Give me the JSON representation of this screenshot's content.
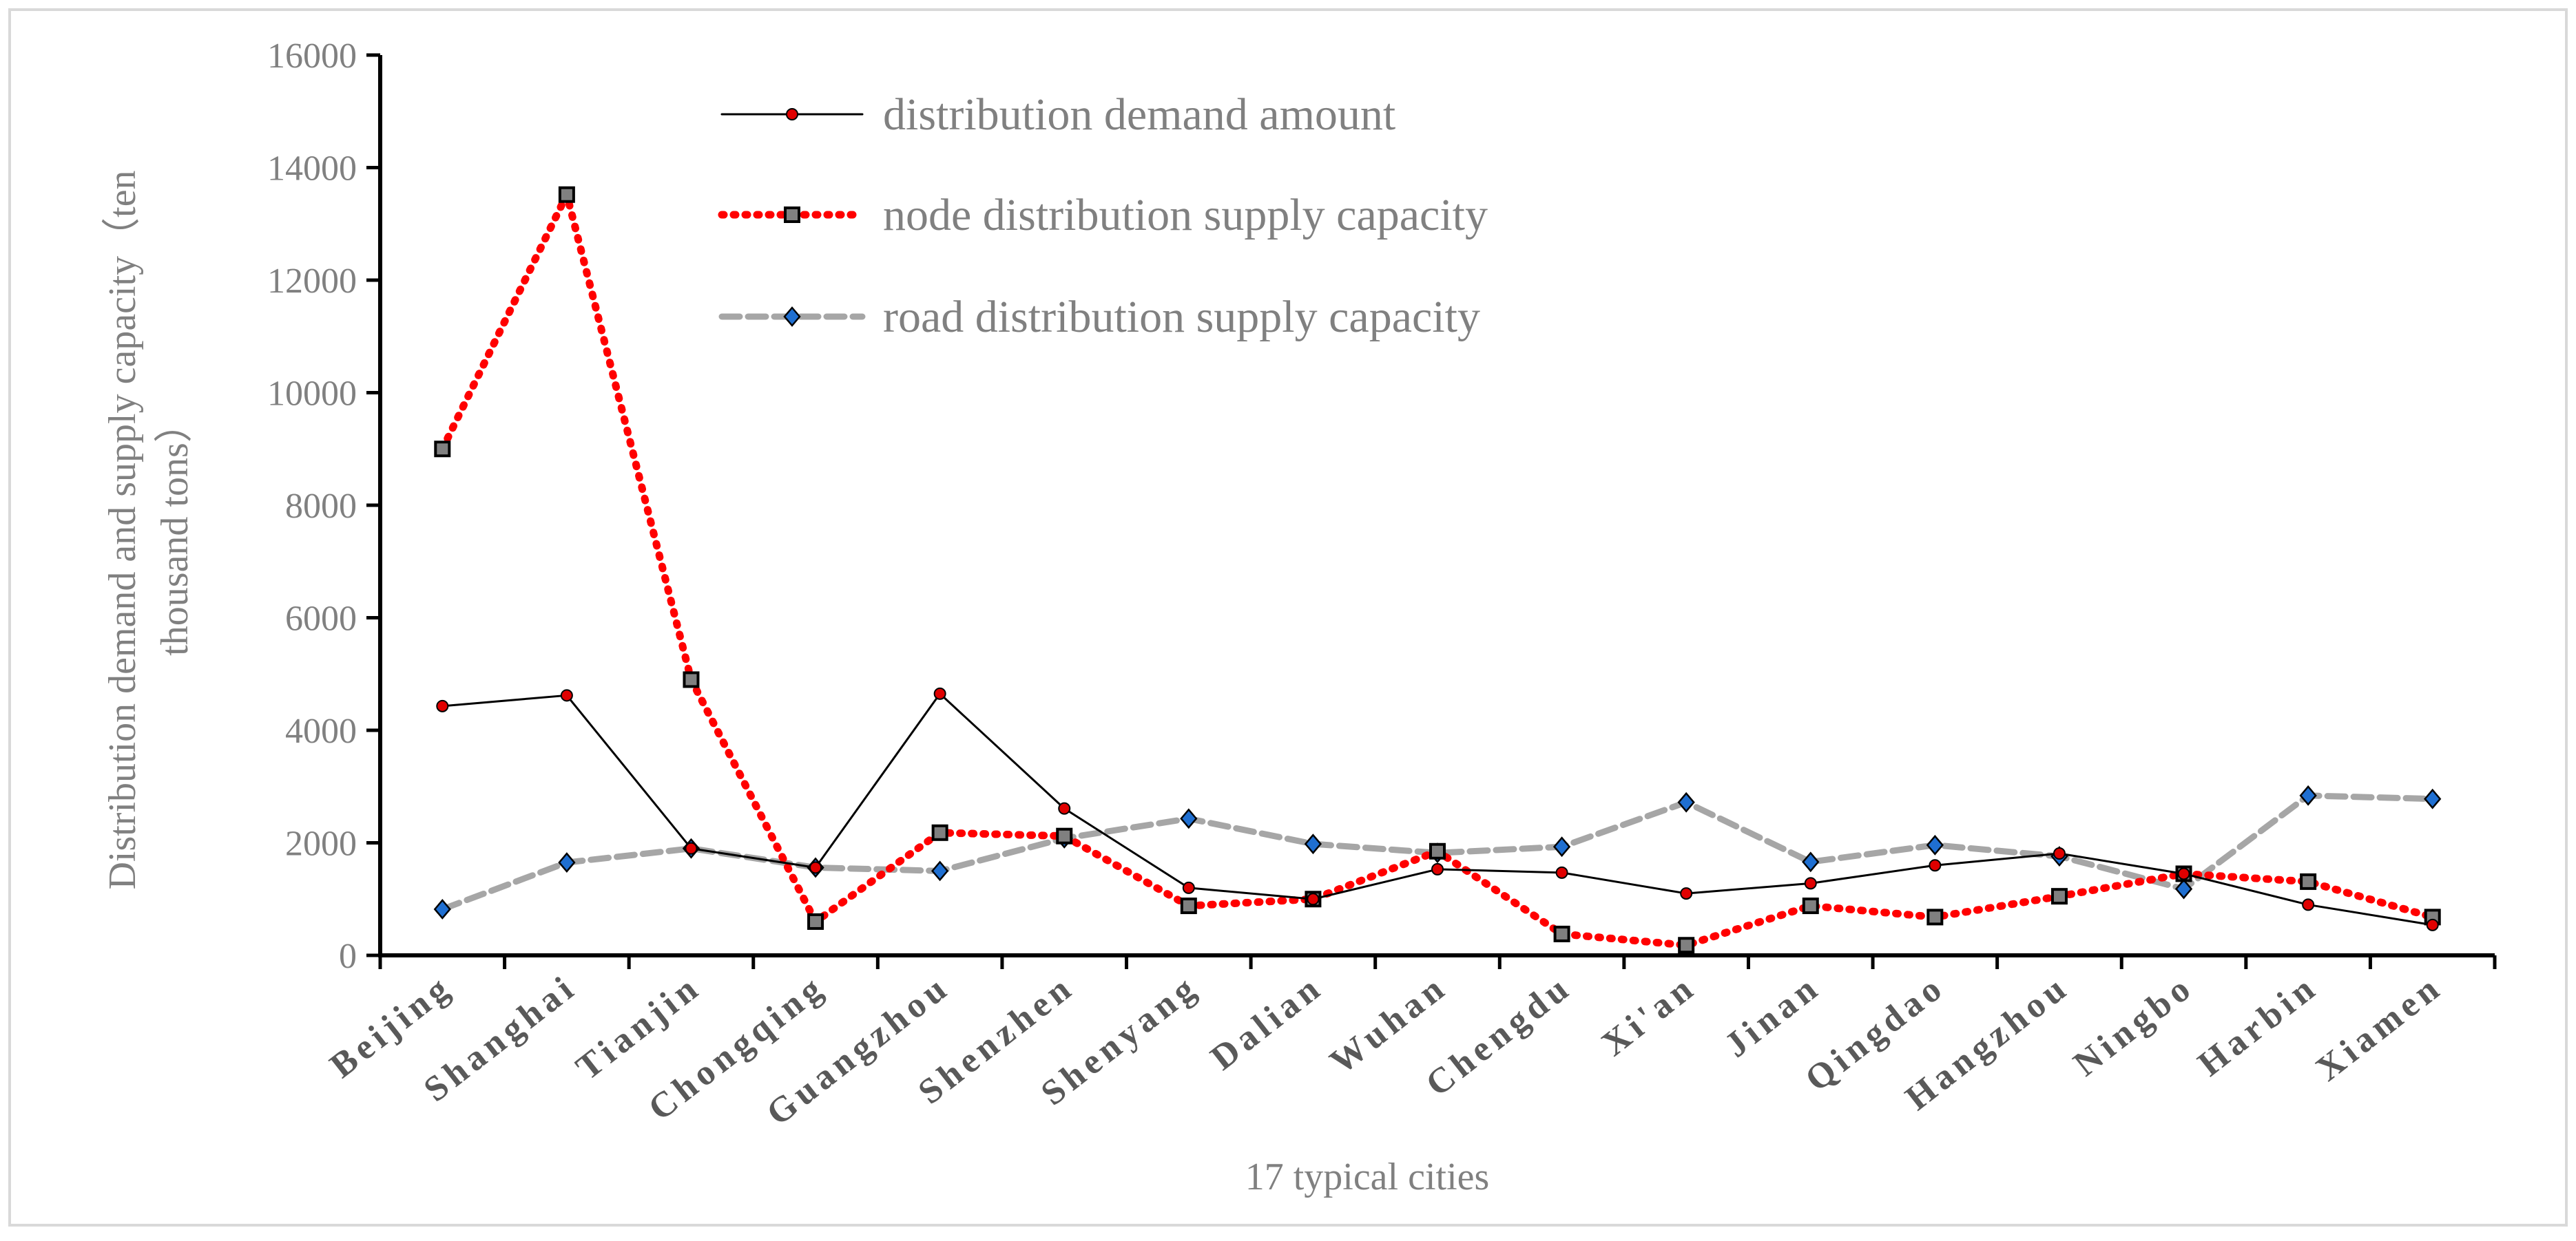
{
  "chart_data": {
    "type": "line",
    "title": "",
    "xlabel": "17 typical cities",
    "ylabel_line1": "Distribution demand and supply capacity（ten",
    "ylabel_line2": "thousand  tons）",
    "ylim": [
      0,
      16000
    ],
    "yticks": [
      0,
      2000,
      4000,
      6000,
      8000,
      10000,
      12000,
      14000,
      16000
    ],
    "grid": false,
    "legend_position": "top-center",
    "categories": [
      "Beijing",
      "Shanghai",
      "Tianjin",
      "Chongqing",
      "Guangzhou",
      "Shenzhen",
      "Shenyang",
      "Dalian",
      "Wuhan",
      "Chengdu",
      "Xi'an",
      "Jinan",
      "Qingdao",
      "Hangzhou",
      "Ningbo",
      "Harbin",
      "Xiamen"
    ],
    "series": [
      {
        "name": "distribution demand amount",
        "color": "#000000",
        "marker_color": "#e00000",
        "line_style": "solid",
        "marker": "circle",
        "values": [
          4430,
          4620,
          1900,
          1560,
          4650,
          2610,
          1200,
          1000,
          1530,
          1470,
          1100,
          1280,
          1600,
          1810,
          1450,
          900,
          540
        ]
      },
      {
        "name": "node distribution supply capacity",
        "color": "#ff0000",
        "marker_color": "#808080",
        "line_style": "dotted",
        "marker": "square",
        "values": [
          9000,
          13520,
          4900,
          600,
          2180,
          2120,
          880,
          1000,
          1850,
          380,
          180,
          880,
          680,
          1050,
          1450,
          1310,
          680
        ]
      },
      {
        "name": "road distribution supply capacity",
        "color": "#a6a6a6",
        "marker_color": "#1f6fd1",
        "line_style": "dashed",
        "marker": "diamond",
        "values": [
          820,
          1650,
          1900,
          1560,
          1500,
          2080,
          2430,
          1980,
          1820,
          1930,
          2720,
          1660,
          1960,
          1760,
          1180,
          2840,
          2780
        ]
      }
    ]
  }
}
